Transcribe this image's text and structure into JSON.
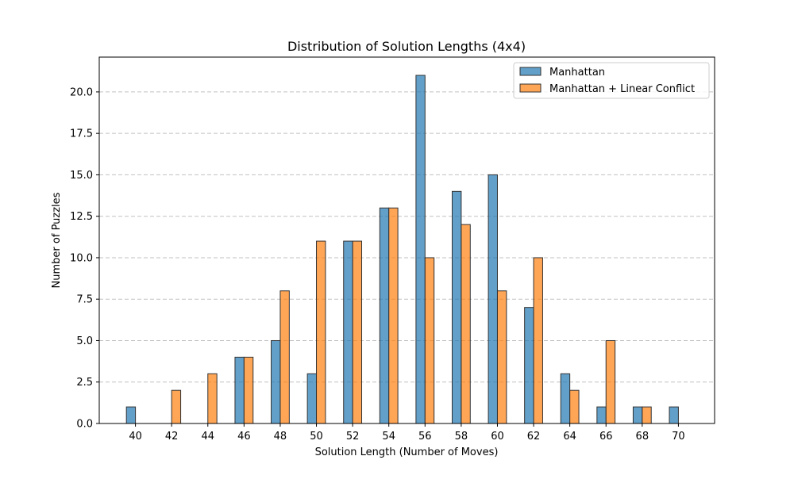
{
  "chart_data": {
    "type": "bar",
    "title": "Distribution of Solution Lengths (4x4)",
    "xlabel": "Solution Length (Number of Moves)",
    "ylabel": "Number of Puzzles",
    "x_ticks": [
      40,
      42,
      44,
      46,
      48,
      50,
      52,
      54,
      56,
      58,
      60,
      62,
      64,
      66,
      68,
      70
    ],
    "xlim": [
      38.0,
      72.0
    ],
    "ylim": [
      0,
      22.1
    ],
    "y_ticks": [
      0,
      2.5,
      5,
      7.5,
      10,
      12.5,
      15,
      17.5,
      20
    ],
    "y_tick_labels": [
      "0.0",
      "2.5",
      "5.0",
      "7.5",
      "10.0",
      "12.5",
      "15.0",
      "17.5",
      "20.0"
    ],
    "grid": {
      "y": true,
      "style": "dashed"
    },
    "legend_position": "top-right",
    "series": [
      {
        "name": "Manhattan",
        "color": "#1f77b4",
        "points": [
          {
            "x": 40,
            "y": 1
          },
          {
            "x": 46,
            "y": 4
          },
          {
            "x": 48,
            "y": 5
          },
          {
            "x": 50,
            "y": 3
          },
          {
            "x": 52,
            "y": 11
          },
          {
            "x": 54,
            "y": 13
          },
          {
            "x": 56,
            "y": 21
          },
          {
            "x": 58,
            "y": 14
          },
          {
            "x": 60,
            "y": 15
          },
          {
            "x": 62,
            "y": 7
          },
          {
            "x": 64,
            "y": 3
          },
          {
            "x": 66,
            "y": 1
          },
          {
            "x": 68,
            "y": 1
          },
          {
            "x": 70,
            "y": 1
          }
        ]
      },
      {
        "name": "Manhattan + Linear Conflict",
        "color": "#ff7f0e",
        "points": [
          {
            "x": 42,
            "y": 2
          },
          {
            "x": 44,
            "y": 3
          },
          {
            "x": 46,
            "y": 4
          },
          {
            "x": 48,
            "y": 8
          },
          {
            "x": 50,
            "y": 11
          },
          {
            "x": 52,
            "y": 11
          },
          {
            "x": 54,
            "y": 13
          },
          {
            "x": 56,
            "y": 10
          },
          {
            "x": 58,
            "y": 12
          },
          {
            "x": 60,
            "y": 8
          },
          {
            "x": 62,
            "y": 10
          },
          {
            "x": 64,
            "y": 2
          },
          {
            "x": 66,
            "y": 5
          },
          {
            "x": 68,
            "y": 1
          }
        ]
      }
    ]
  }
}
